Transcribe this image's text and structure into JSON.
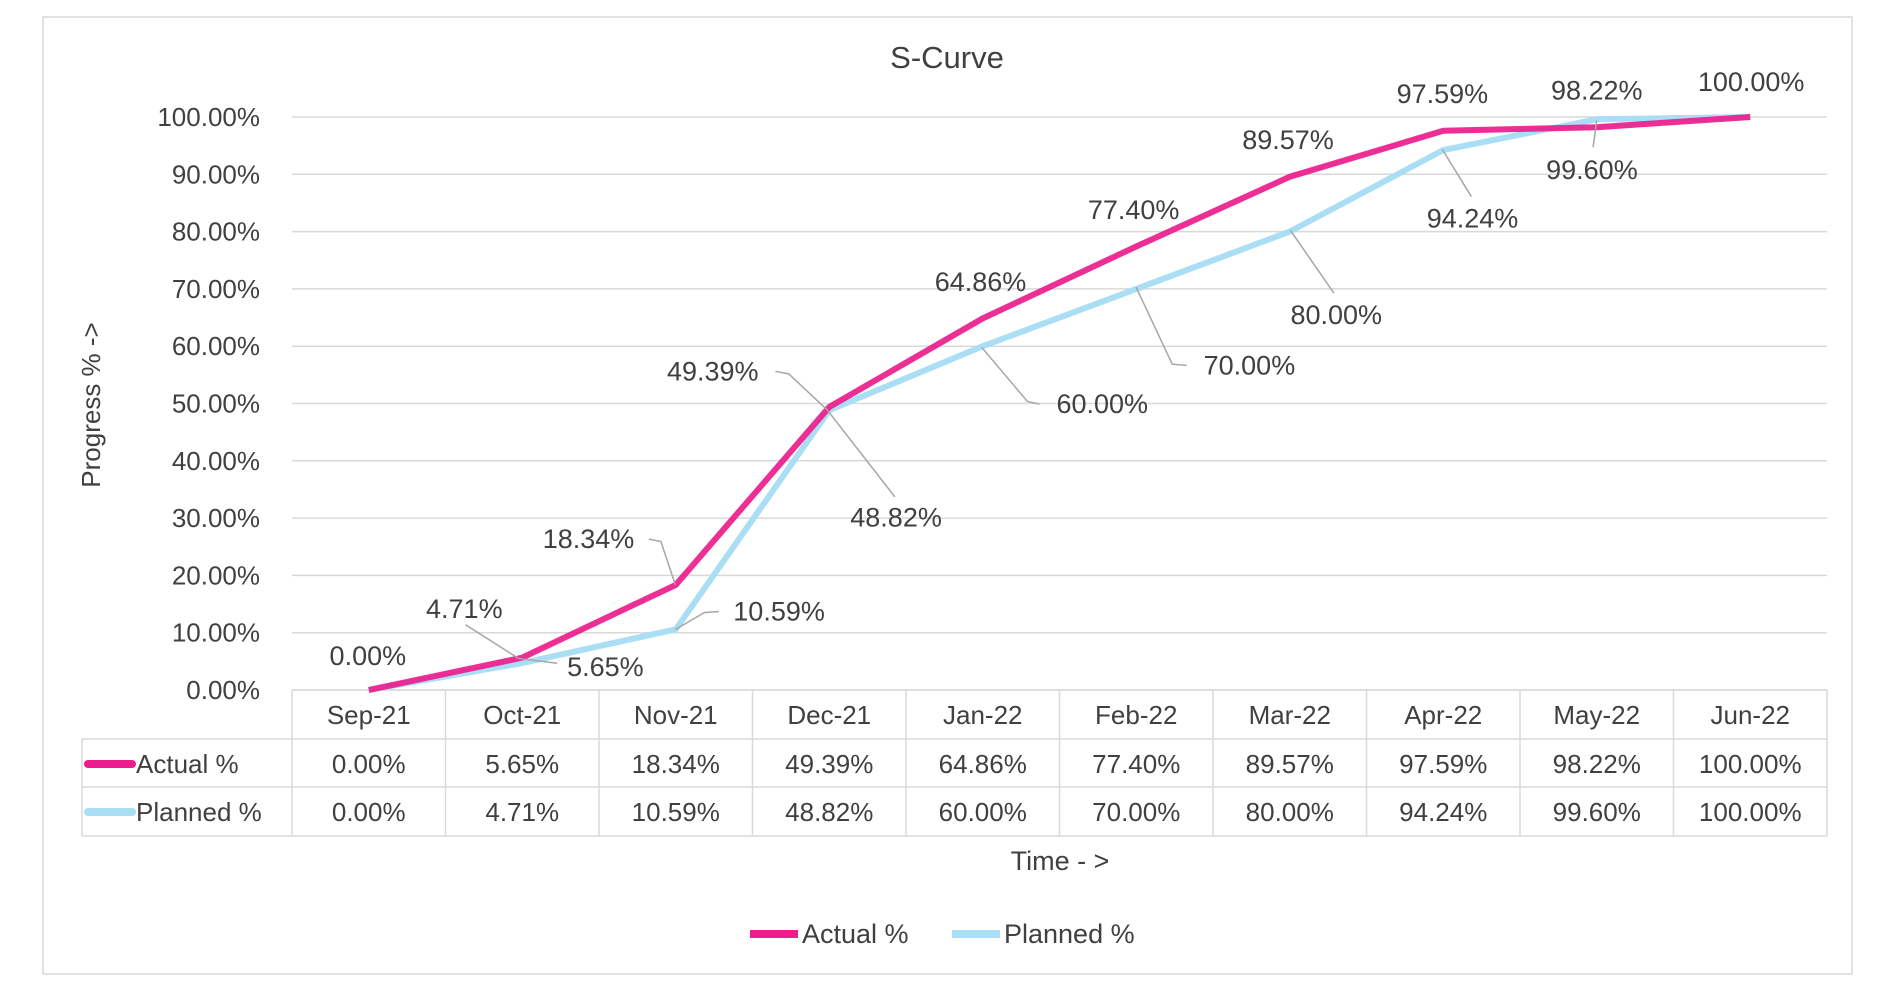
{
  "chart_data": {
    "type": "line",
    "title": "S-Curve",
    "xlabel": "Time -  >",
    "ylabel": "Progress %  ->",
    "categories": [
      "Sep-21",
      "Oct-21",
      "Nov-21",
      "Dec-21",
      "Jan-22",
      "Feb-22",
      "Mar-22",
      "Apr-22",
      "May-22",
      "Jun-22"
    ],
    "ylim": [
      0,
      100
    ],
    "yticks": [
      "0.00%",
      "10.00%",
      "20.00%",
      "30.00%",
      "40.00%",
      "50.00%",
      "60.00%",
      "70.00%",
      "80.00%",
      "90.00%",
      "100.00%"
    ],
    "grid": true,
    "legend_position": "bottom",
    "data_table": true,
    "series": [
      {
        "name": "Actual %",
        "color": "#ec1c8c",
        "values": [
          0.0,
          5.65,
          18.34,
          49.39,
          64.86,
          77.4,
          89.57,
          97.59,
          98.22,
          100.0
        ],
        "labels": [
          "0.00%",
          "5.65%",
          "18.34%",
          "49.39%",
          "64.86%",
          "77.40%",
          "89.57%",
          "97.59%",
          "98.22%",
          "100.00%"
        ]
      },
      {
        "name": "Planned %",
        "color": "#a9def5",
        "values": [
          0.0,
          4.71,
          10.59,
          48.82,
          60.0,
          70.0,
          80.0,
          94.24,
          99.6,
          100.0
        ],
        "labels": [
          "0.00%",
          "4.71%",
          "10.59%",
          "48.82%",
          "60.00%",
          "70.00%",
          "80.00%",
          "94.24%",
          "99.60%",
          "100.00%"
        ]
      }
    ]
  }
}
